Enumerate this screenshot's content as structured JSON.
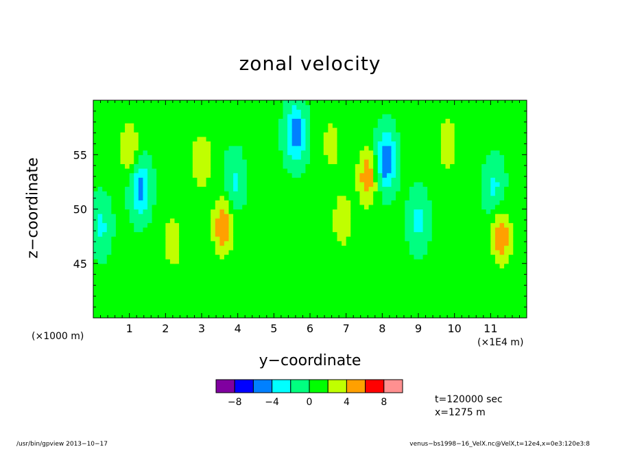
{
  "chart_data": {
    "type": "heatmap",
    "title": "zonal velocity",
    "xlabel": "y−coordinate",
    "ylabel": "z−coordinate",
    "x_units_label": "(×1E4 m)",
    "y_units_label": "(×1000 m)",
    "xlim": [
      0,
      12
    ],
    "ylim": [
      40,
      60
    ],
    "x_ticks": [
      "1",
      "2",
      "3",
      "4",
      "5",
      "6",
      "7",
      "8",
      "9",
      "10",
      "11"
    ],
    "y_ticks": [
      "45",
      "50",
      "55"
    ],
    "colorbar": {
      "levels": [
        -10,
        -8,
        -6,
        -4,
        -2,
        0,
        2,
        4,
        6,
        8,
        10
      ],
      "colors": [
        "#8000a0",
        "#0000ff",
        "#0080ff",
        "#00ffff",
        "#00ff80",
        "#00ff00",
        "#c0ff00",
        "#ffa000",
        "#ff0000",
        "#ff9090"
      ],
      "tick_labels": [
        "−8",
        "−4",
        "0",
        "4",
        "8"
      ],
      "tick_values": [
        -8,
        -4,
        0,
        4,
        8
      ]
    },
    "background_value": 0.5,
    "features": [
      {
        "x": 1.0,
        "z": 55.5,
        "value": 3.5
      },
      {
        "x": 1.3,
        "z": 52.0,
        "value": -5.5
      },
      {
        "x": 0.2,
        "z": 48.5,
        "value": -3.0
      },
      {
        "x": 2.2,
        "z": 47.0,
        "value": 3.0
      },
      {
        "x": 3.0,
        "z": 54.5,
        "value": 3.5
      },
      {
        "x": 3.6,
        "z": 48.5,
        "value": 5.5
      },
      {
        "x": 3.9,
        "z": 52.5,
        "value": -3.0
      },
      {
        "x": 5.6,
        "z": 57.0,
        "value": -6.0
      },
      {
        "x": 6.6,
        "z": 56.0,
        "value": 2.5
      },
      {
        "x": 7.6,
        "z": 53.0,
        "value": 5.0
      },
      {
        "x": 8.1,
        "z": 54.5,
        "value": -6.5
      },
      {
        "x": 9.8,
        "z": 56.0,
        "value": 3.0
      },
      {
        "x": 11.1,
        "z": 52.0,
        "value": -3.0
      },
      {
        "x": 11.3,
        "z": 47.5,
        "value": 5.0
      },
      {
        "x": 6.9,
        "z": 49.0,
        "value": 3.0
      },
      {
        "x": 9.0,
        "z": 49.0,
        "value": -3.0
      }
    ]
  },
  "annotations": {
    "time": "t=120000 sec",
    "x_location": "x=1275 m"
  },
  "footer": {
    "left": "/usr/bin/gpview   2013−10−17",
    "right": "venus−bs1998−16_VelX.nc@VelX,t=12e4,x=0e3:120e3:8"
  }
}
